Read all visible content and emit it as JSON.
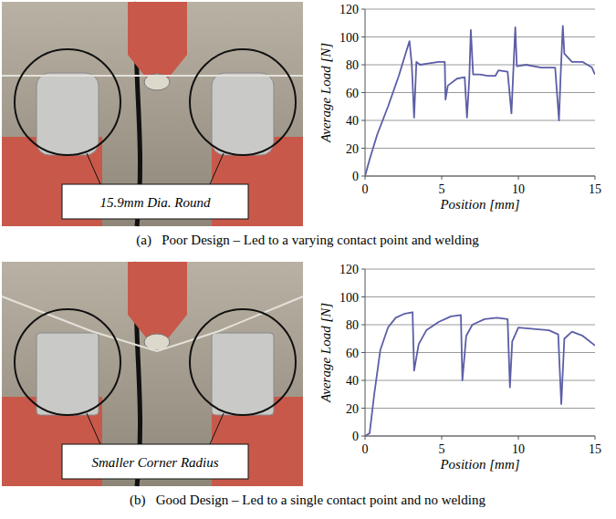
{
  "chart_data": [
    {
      "type": "line",
      "annotations": [
        "15.9mm Dia. Round"
      ],
      "caption": "(a)   Poor Design – Led to a varying contact point and welding",
      "x_label": "Position [mm]",
      "y_label": "Average Load [N]",
      "color": "#5b5ea6",
      "x": [
        0,
        0.3,
        0.8,
        1.5,
        2.2,
        2.7,
        2.9,
        3.05,
        3.2,
        3.35,
        3.6,
        4.2,
        4.8,
        5.2,
        5.25,
        5.4,
        6.0,
        6.5,
        6.65,
        6.8,
        6.9,
        7.05,
        7.5,
        8.0,
        8.5,
        8.7,
        9.3,
        9.55,
        9.65,
        9.8,
        9.9,
        10.5,
        11.5,
        12.4,
        12.65,
        12.75,
        12.9,
        13.0,
        13.5,
        14.2,
        14.8,
        15.0
      ],
      "values": [
        0,
        12,
        30,
        50,
        72,
        90,
        97,
        80,
        42,
        82,
        80,
        81,
        82,
        82,
        55,
        65,
        70,
        71,
        42,
        70,
        105,
        73,
        73,
        72,
        72,
        76,
        75,
        45,
        70,
        107,
        79,
        80,
        78,
        78,
        40,
        70,
        108,
        88,
        82,
        82,
        78,
        73
      ],
      "xlim": [
        0,
        15
      ],
      "xticks": [
        0,
        5,
        10,
        15
      ],
      "ylim": [
        0,
        120
      ],
      "yticks": [
        0,
        20,
        40,
        60,
        80,
        100,
        120
      ],
      "grid": true
    },
    {
      "type": "line",
      "annotations": [
        "Smaller Corner Radius"
      ],
      "caption": "(b)   Good Design – Led to a single contact point and no welding",
      "x_label": "Position [mm]",
      "y_label": "Average Load [N]",
      "color": "#5b5ea6",
      "x": [
        0,
        0.3,
        0.6,
        1.0,
        1.5,
        2.0,
        2.6,
        3.1,
        3.2,
        3.5,
        4.0,
        4.8,
        5.6,
        6.25,
        6.35,
        6.6,
        7.0,
        7.8,
        8.6,
        9.3,
        9.45,
        9.6,
        10.0,
        11.0,
        12.0,
        12.6,
        12.8,
        13.0,
        13.5,
        14.2,
        15.0
      ],
      "values": [
        0,
        2,
        30,
        62,
        78,
        85,
        88,
        89,
        47,
        66,
        76,
        82,
        86,
        87,
        40,
        72,
        80,
        84,
        85,
        84,
        35,
        68,
        78,
        77,
        76,
        73,
        23,
        70,
        75,
        72,
        65
      ],
      "xlim": [
        0,
        15
      ],
      "xticks": [
        0,
        5,
        10,
        15
      ],
      "ylim": [
        0,
        120
      ],
      "yticks": [
        0,
        20,
        40,
        60,
        80,
        100,
        120
      ],
      "grid": true
    }
  ]
}
